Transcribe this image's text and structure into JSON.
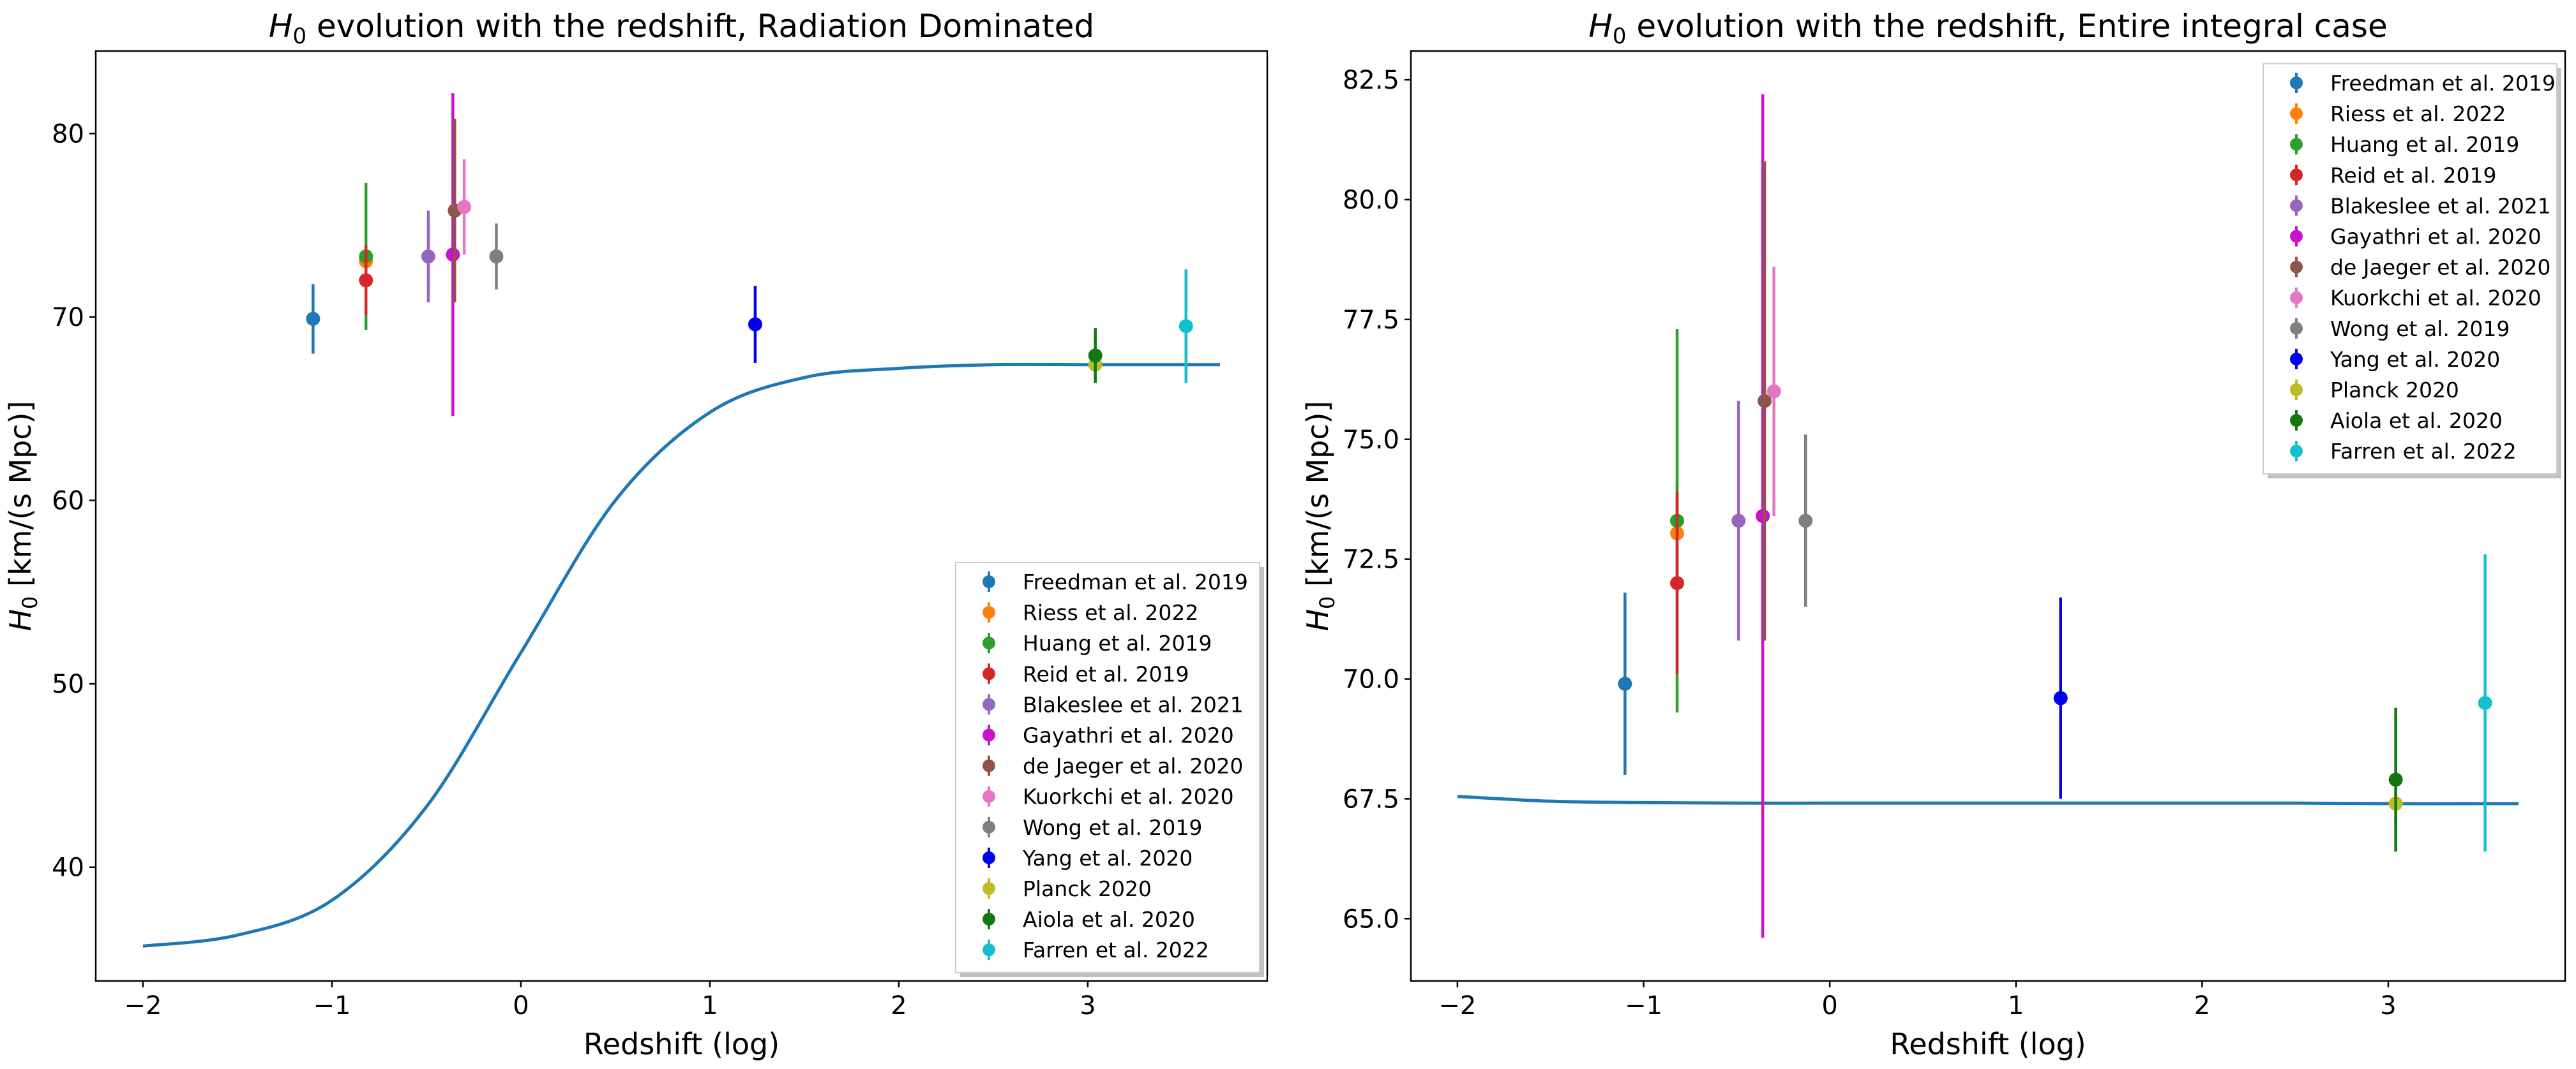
{
  "chart_data": [
    {
      "type": "scatter",
      "title_prefix": "H",
      "title_sub": "0",
      "title_rest": " evolution with the redshift, Radiation Dominated",
      "xlabel": "Redshift (log)",
      "ylabel_prefix": "H",
      "ylabel_sub": "0",
      "ylabel_rest": " [km/(s Mpc)]",
      "xlim": [
        -2.25,
        3.95
      ],
      "ylim": [
        33.8,
        84.5
      ],
      "xticks": [
        -2,
        -1,
        0,
        1,
        2,
        3
      ],
      "xtick_labels": [
        "−2",
        "−1",
        "0",
        "1",
        "2",
        "3"
      ],
      "yticks": [
        40,
        50,
        60,
        70,
        80
      ],
      "ytick_labels": [
        "40",
        "50",
        "60",
        "70",
        "80"
      ],
      "model_curve": {
        "x": [
          -2.0,
          -1.5,
          -1.0,
          -0.5,
          0.0,
          0.5,
          1.0,
          1.5,
          2.0,
          2.5,
          3.0,
          3.5,
          3.7
        ],
        "y": [
          35.7,
          36.3,
          38.2,
          43.3,
          51.7,
          60.0,
          64.8,
          66.7,
          67.2,
          67.4,
          67.4,
          67.4,
          67.4
        ],
        "color": "#1f77b4"
      },
      "legend_position": "lower-right",
      "series": [
        {
          "name": "Freedman et al. 2019",
          "x": -1.1,
          "y": 69.9,
          "err_lo": 1.9,
          "err_hi": 1.9,
          "color": "#1f77b4"
        },
        {
          "name": "Riess et al. 2022",
          "x": -0.82,
          "y": 73.04,
          "err_lo": 1.04,
          "err_hi": 1.04,
          "color": "#ff7f0e"
        },
        {
          "name": "Huang et al. 2019",
          "x": -0.82,
          "y": 73.3,
          "err_lo": 4.0,
          "err_hi": 4.0,
          "color": "#2ca02c"
        },
        {
          "name": "Reid et al. 2019",
          "x": -0.82,
          "y": 72.0,
          "err_lo": 1.9,
          "err_hi": 1.9,
          "color": "#d62728"
        },
        {
          "name": "Blakeslee et al. 2021",
          "x": -0.49,
          "y": 73.3,
          "err_lo": 2.5,
          "err_hi": 2.5,
          "color": "#9467bd"
        },
        {
          "name": "Gayathri et al. 2020",
          "x": -0.36,
          "y": 73.4,
          "err_lo": 8.8,
          "err_hi": 8.8,
          "color": "#cc11cc"
        },
        {
          "name": "de Jaeger et al. 2020",
          "x": -0.35,
          "y": 75.8,
          "err_lo": 5.0,
          "err_hi": 5.0,
          "color": "#8c564b"
        },
        {
          "name": "Kuorkchi et al. 2020",
          "x": -0.3,
          "y": 76.0,
          "err_lo": 2.6,
          "err_hi": 2.6,
          "color": "#e377c2"
        },
        {
          "name": "Wong et al. 2019",
          "x": -0.13,
          "y": 73.3,
          "err_lo": 1.8,
          "err_hi": 1.8,
          "color": "#7f7f7f"
        },
        {
          "name": "Yang et al. 2020",
          "x": 1.24,
          "y": 69.6,
          "err_lo": 2.1,
          "err_hi": 2.1,
          "color": "#0000ee"
        },
        {
          "name": "Planck 2020",
          "x": 3.04,
          "y": 67.4,
          "err_lo": 0.5,
          "err_hi": 0.5,
          "color": "#bcbd22"
        },
        {
          "name": "Aiola et al. 2020",
          "x": 3.04,
          "y": 67.9,
          "err_lo": 1.5,
          "err_hi": 1.5,
          "color": "#117711"
        },
        {
          "name": "Farren et al. 2022",
          "x": 3.52,
          "y": 69.5,
          "err_lo": 3.1,
          "err_hi": 3.1,
          "color": "#17becf"
        }
      ]
    },
    {
      "type": "scatter",
      "title_prefix": "H",
      "title_sub": "0",
      "title_rest": " evolution with the redshift, Entire integral case",
      "xlabel": "Redshift (log)",
      "ylabel_prefix": "H",
      "ylabel_sub": "0",
      "ylabel_rest": " [km/(s Mpc)]",
      "xlim": [
        -2.25,
        3.95
      ],
      "ylim": [
        63.7,
        83.1
      ],
      "xticks": [
        -2,
        -1,
        0,
        1,
        2,
        3
      ],
      "xtick_labels": [
        "−2",
        "−1",
        "0",
        "1",
        "2",
        "3"
      ],
      "yticks": [
        65.0,
        67.5,
        70.0,
        72.5,
        75.0,
        77.5,
        80.0,
        82.5
      ],
      "ytick_labels": [
        "65.0",
        "67.5",
        "70.0",
        "72.5",
        "75.0",
        "77.5",
        "80.0",
        "82.5"
      ],
      "model_curve": {
        "x": [
          -2.0,
          -1.5,
          -1.0,
          -0.5,
          0.0,
          0.5,
          1.0,
          1.5,
          2.0,
          2.5,
          3.0,
          3.5,
          3.7
        ],
        "y": [
          67.55,
          67.45,
          67.42,
          67.41,
          67.41,
          67.41,
          67.41,
          67.41,
          67.41,
          67.41,
          67.4,
          67.4,
          67.4
        ],
        "color": "#1f77b4"
      },
      "legend_position": "upper-right",
      "series": [
        {
          "name": "Freedman et al. 2019",
          "x": -1.1,
          "y": 69.9,
          "err_lo": 1.9,
          "err_hi": 1.9,
          "color": "#1f77b4"
        },
        {
          "name": "Riess et al. 2022",
          "x": -0.82,
          "y": 73.04,
          "err_lo": 1.04,
          "err_hi": 1.04,
          "color": "#ff7f0e"
        },
        {
          "name": "Huang et al. 2019",
          "x": -0.82,
          "y": 73.3,
          "err_lo": 4.0,
          "err_hi": 4.0,
          "color": "#2ca02c"
        },
        {
          "name": "Reid et al. 2019",
          "x": -0.82,
          "y": 72.0,
          "err_lo": 1.9,
          "err_hi": 1.9,
          "color": "#d62728"
        },
        {
          "name": "Blakeslee et al. 2021",
          "x": -0.49,
          "y": 73.3,
          "err_lo": 2.5,
          "err_hi": 2.5,
          "color": "#9467bd"
        },
        {
          "name": "Gayathri et al. 2020",
          "x": -0.36,
          "y": 73.4,
          "err_lo": 8.8,
          "err_hi": 8.8,
          "color": "#cc11cc"
        },
        {
          "name": "de Jaeger et al. 2020",
          "x": -0.35,
          "y": 75.8,
          "err_lo": 5.0,
          "err_hi": 5.0,
          "color": "#8c564b"
        },
        {
          "name": "Kuorkchi et al. 2020",
          "x": -0.3,
          "y": 76.0,
          "err_lo": 2.6,
          "err_hi": 2.6,
          "color": "#e377c2"
        },
        {
          "name": "Wong et al. 2019",
          "x": -0.13,
          "y": 73.3,
          "err_lo": 1.8,
          "err_hi": 1.8,
          "color": "#7f7f7f"
        },
        {
          "name": "Yang et al. 2020",
          "x": 1.24,
          "y": 69.6,
          "err_lo": 2.1,
          "err_hi": 2.1,
          "color": "#0000ee"
        },
        {
          "name": "Planck 2020",
          "x": 3.04,
          "y": 67.4,
          "err_lo": 0.5,
          "err_hi": 0.5,
          "color": "#bcbd22"
        },
        {
          "name": "Aiola et al. 2020",
          "x": 3.04,
          "y": 67.9,
          "err_lo": 1.5,
          "err_hi": 1.5,
          "color": "#117711"
        },
        {
          "name": "Farren et al. 2022",
          "x": 3.52,
          "y": 69.5,
          "err_lo": 3.1,
          "err_hi": 3.1,
          "color": "#17becf"
        }
      ]
    }
  ]
}
